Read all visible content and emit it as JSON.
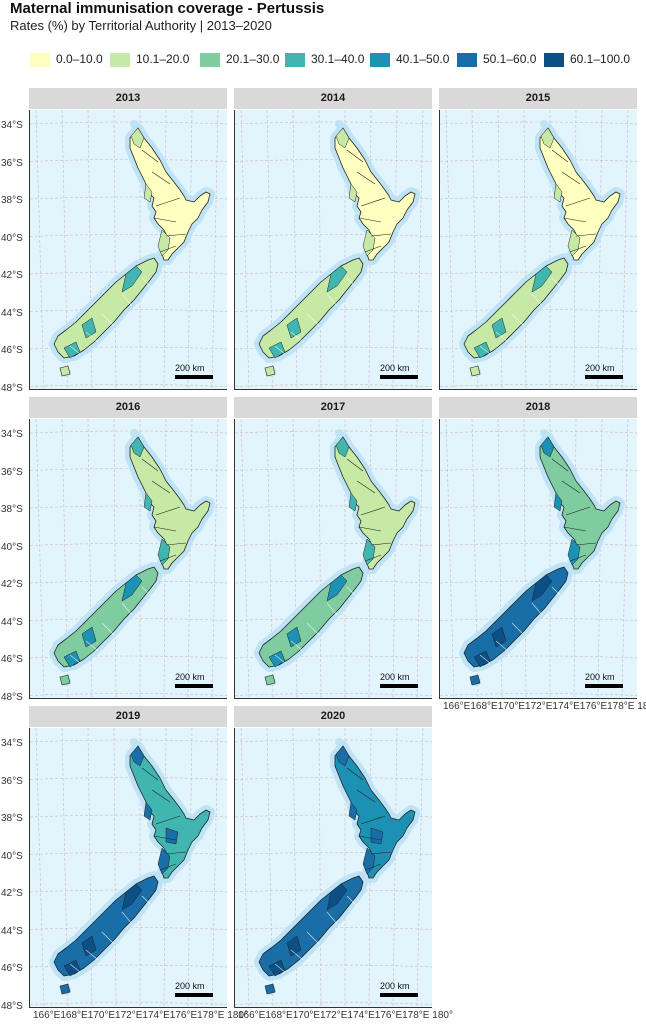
{
  "title": "Maternal immunisation coverage - Pertussis",
  "subtitle": "Rates (%) by Territorial Authority | 2013–2020",
  "legend": [
    {
      "label": "0.0–10.0",
      "color": "#ffffbf"
    },
    {
      "label": "10.1–20.0",
      "color": "#c7e9a6"
    },
    {
      "label": "20.1–30.0",
      "color": "#7fcca0"
    },
    {
      "label": "30.1–40.0",
      "color": "#41b6b0"
    },
    {
      "label": "40.1–50.0",
      "color": "#1d91b4"
    },
    {
      "label": "50.1–60.0",
      "color": "#1a6ea8"
    },
    {
      "label": "60.1–100.0",
      "color": "#0b4f85"
    }
  ],
  "latitude_labels": [
    "34°S",
    "36°S",
    "38°S",
    "40°S",
    "42°S",
    "44°S",
    "46°S",
    "48°S"
  ],
  "longitude_labels": "166°E168°E170°E172°E174°E176°E178°E 180°",
  "scale_label": "200 km",
  "map_colors": {
    "ocean": "#e2f4fc",
    "coast_halo": "#bfe3f6",
    "grid": "#cbb9b9",
    "border": "#222222"
  },
  "panels": [
    {
      "year": "2013",
      "north_class": 0,
      "north_accent": 1,
      "south_class": 1,
      "south_accent": 3,
      "north_dark": false
    },
    {
      "year": "2014",
      "north_class": 0,
      "north_accent": 1,
      "south_class": 1,
      "south_accent": 3,
      "north_dark": false
    },
    {
      "year": "2015",
      "north_class": 0,
      "north_accent": 1,
      "south_class": 1,
      "south_accent": 3,
      "north_dark": false
    },
    {
      "year": "2016",
      "north_class": 1,
      "north_accent": 3,
      "south_class": 2,
      "south_accent": 4,
      "north_dark": false
    },
    {
      "year": "2017",
      "north_class": 1,
      "north_accent": 3,
      "south_class": 2,
      "south_accent": 4,
      "north_dark": false
    },
    {
      "year": "2018",
      "north_class": 2,
      "north_accent": 4,
      "south_class": 5,
      "south_accent": 6,
      "north_dark": false
    },
    {
      "year": "2019",
      "north_class": 3,
      "north_accent": 5,
      "south_class": 5,
      "south_accent": 6,
      "north_dark": true
    },
    {
      "year": "2020",
      "north_class": 4,
      "north_accent": 5,
      "south_class": 5,
      "south_accent": 6,
      "north_dark": true
    }
  ]
}
